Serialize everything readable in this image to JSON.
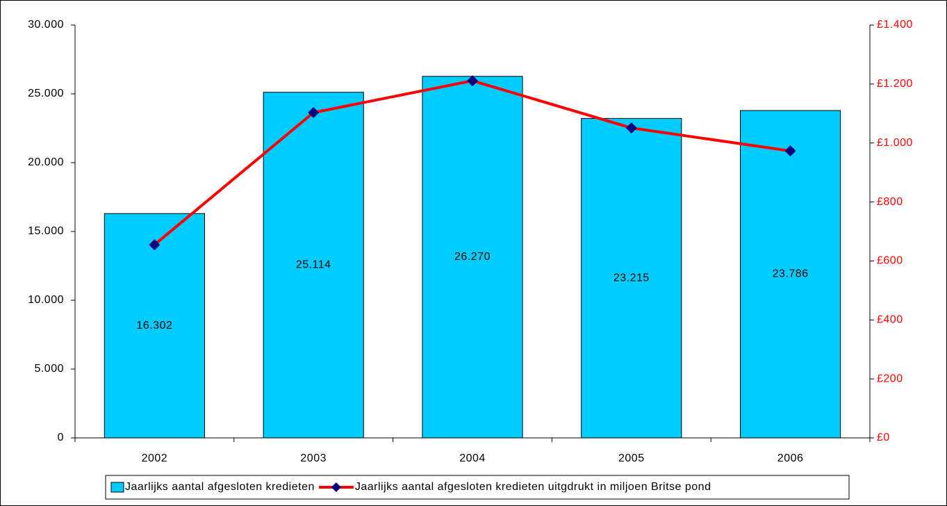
{
  "chart_data": {
    "type": "bar",
    "categories": [
      "2002",
      "2003",
      "2004",
      "2005",
      "2006"
    ],
    "series": [
      {
        "name": "Jaarlijks aantal afgesloten kredieten",
        "type": "bar",
        "color": "#00ccff",
        "values": [
          16302,
          25114,
          26270,
          23215,
          23786
        ],
        "value_labels": [
          "16.302",
          "25.114",
          "26.270",
          "23.215",
          "23.786"
        ]
      },
      {
        "name": "Jaarlijks aantal afgesloten kredieten uitgdrukt in miljoen Britse pond",
        "type": "line",
        "axis": "y2",
        "color": "#ff0000",
        "marker_color": "#000080",
        "values": [
          655,
          1103,
          1211,
          1051,
          973
        ]
      }
    ],
    "ylim": [
      0,
      30000
    ],
    "yticks": [
      0,
      {
        "value": 5000,
        "label": "5.000"
      },
      {
        "value": 10000,
        "label": "10.000"
      },
      {
        "value": 15000,
        "label": "15.000"
      },
      {
        "value": 20000,
        "label": "20.000"
      },
      {
        "value": 25000,
        "label": "25.000"
      },
      {
        "value": 30000,
        "label": "30.000"
      }
    ],
    "y2lim": [
      0,
      1400
    ],
    "y2ticks": [
      {
        "value": 0,
        "label": "£0"
      },
      {
        "value": 200,
        "label": "£200"
      },
      {
        "value": 400,
        "label": "£400"
      },
      {
        "value": 600,
        "label": "£600"
      },
      {
        "value": 800,
        "label": "£800"
      },
      {
        "value": 1000,
        "label": "£1.000"
      },
      {
        "value": 1200,
        "label": "£1.200"
      },
      {
        "value": 1400,
        "label": "£1.400"
      }
    ],
    "y2_color": "#ff0000",
    "legend": "bottom"
  }
}
